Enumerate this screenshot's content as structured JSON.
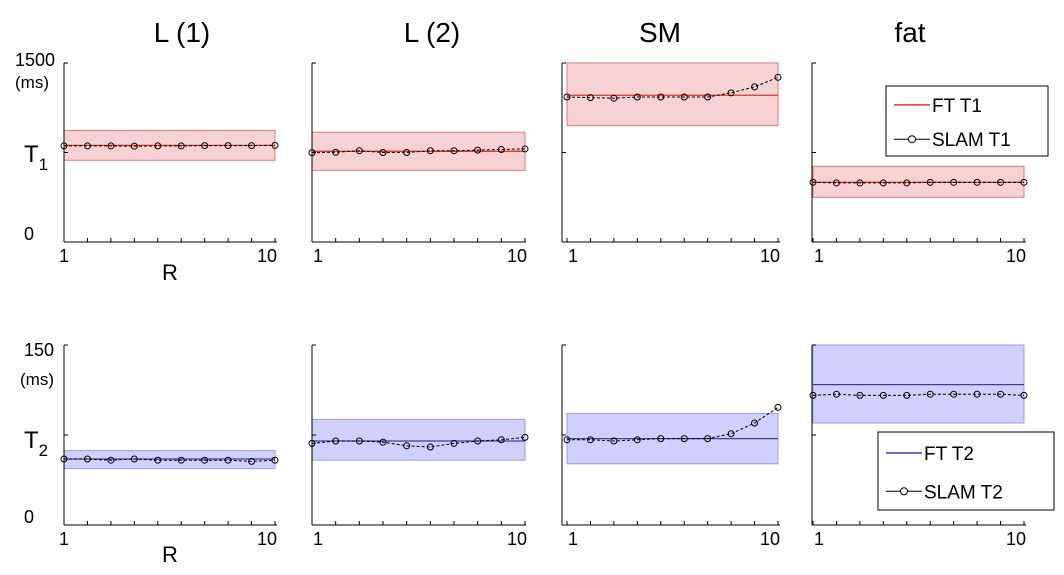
{
  "columns": [
    "L (1)",
    "L (2)",
    "SM",
    "fat"
  ],
  "rows": [
    {
      "ylabel": "T",
      "ylabel_sub": "1",
      "ymax_label": "1500",
      "ymin_label": "0",
      "unit": "(ms)"
    },
    {
      "ylabel": "T",
      "ylabel_sub": "2",
      "ymax_label": "150",
      "ymin_label": "0",
      "unit": "(ms)"
    }
  ],
  "xlabel": "R",
  "xtick_labels": [
    "1",
    "10"
  ],
  "colors": {
    "t1_line": "#d93a2b",
    "t1_band": "#f7d2d2",
    "t1_band_edge": "#e07a78",
    "t2_line": "#4a3aa8",
    "t2_band": "#cfd0fb",
    "t2_band_edge": "#9a9cf0",
    "slam": "#000000"
  },
  "legends": [
    {
      "row": 0,
      "col": 3,
      "ft": "FT T1",
      "slam": "SLAM T1"
    },
    {
      "row": 1,
      "col": 3,
      "ft": "FT T2",
      "slam": "SLAM T2"
    }
  ],
  "chart_data": [
    {
      "type": "line",
      "row": 0,
      "col": 0,
      "title": "L (1)",
      "x": [
        1,
        2,
        3,
        4,
        5,
        6,
        7,
        8,
        9,
        10
      ],
      "xlim": [
        1,
        10
      ],
      "ylim": [
        0,
        1500
      ],
      "series": [
        {
          "name": "FT T1",
          "values": [
            810,
            810,
            810,
            810,
            810,
            810,
            810,
            810,
            810,
            810
          ],
          "band": [
            685,
            935
          ]
        },
        {
          "name": "SLAM T1",
          "values": [
            805,
            805,
            805,
            803,
            805,
            805,
            808,
            808,
            808,
            810
          ]
        }
      ]
    },
    {
      "type": "line",
      "row": 0,
      "col": 1,
      "title": "L (2)",
      "x": [
        1,
        2,
        3,
        4,
        5,
        6,
        7,
        8,
        9,
        10
      ],
      "xlim": [
        1,
        10
      ],
      "ylim": [
        0,
        1500
      ],
      "series": [
        {
          "name": "FT T1",
          "values": [
            760,
            760,
            760,
            760,
            760,
            760,
            760,
            760,
            760,
            760
          ],
          "band": [
            600,
            920
          ]
        },
        {
          "name": "SLAM T1",
          "values": [
            748,
            752,
            765,
            750,
            750,
            765,
            765,
            770,
            775,
            780
          ]
        }
      ]
    },
    {
      "type": "line",
      "row": 0,
      "col": 2,
      "title": "SM",
      "x": [
        1,
        2,
        3,
        4,
        5,
        6,
        7,
        8,
        9,
        10
      ],
      "xlim": [
        1,
        10
      ],
      "ylim": [
        0,
        1500
      ],
      "series": [
        {
          "name": "FT T1",
          "values": [
            1230,
            1230,
            1230,
            1230,
            1230,
            1230,
            1230,
            1230,
            1230,
            1230
          ],
          "band": [
            975,
            1500
          ]
        },
        {
          "name": "SLAM T1",
          "values": [
            1215,
            1210,
            1205,
            1215,
            1215,
            1215,
            1215,
            1250,
            1300,
            1380
          ]
        }
      ]
    },
    {
      "type": "line",
      "row": 0,
      "col": 3,
      "title": "fat",
      "x": [
        1,
        2,
        3,
        4,
        5,
        6,
        7,
        8,
        9,
        10
      ],
      "xlim": [
        1,
        10
      ],
      "ylim": [
        0,
        1500
      ],
      "series": [
        {
          "name": "FT T1",
          "values": [
            500,
            500,
            500,
            500,
            500,
            500,
            500,
            500,
            500,
            500
          ],
          "band": [
            375,
            635
          ]
        },
        {
          "name": "SLAM T1",
          "values": [
            500,
            495,
            495,
            495,
            495,
            500,
            500,
            500,
            500,
            500
          ]
        }
      ]
    },
    {
      "type": "line",
      "row": 1,
      "col": 0,
      "x": [
        1,
        2,
        3,
        4,
        5,
        6,
        7,
        8,
        9,
        10
      ],
      "xlim": [
        1,
        10
      ],
      "ylim": [
        0,
        150
      ],
      "series": [
        {
          "name": "FT T2",
          "values": [
            55,
            55,
            55,
            55,
            55,
            55,
            55,
            55,
            55,
            55
          ],
          "band": [
            47,
            62
          ]
        },
        {
          "name": "SLAM T2",
          "values": [
            55,
            55,
            54,
            55,
            54,
            54,
            54,
            54,
            53,
            54
          ]
        }
      ]
    },
    {
      "type": "line",
      "row": 1,
      "col": 1,
      "x": [
        1,
        2,
        3,
        4,
        5,
        6,
        7,
        8,
        9,
        10
      ],
      "xlim": [
        1,
        10
      ],
      "ylim": [
        0,
        150
      ],
      "series": [
        {
          "name": "FT T2",
          "values": [
            70,
            70,
            70,
            70,
            70,
            70,
            70,
            70,
            70,
            70
          ],
          "band": [
            54,
            88
          ]
        },
        {
          "name": "SLAM T2",
          "values": [
            68,
            70,
            70,
            69,
            66,
            65,
            68,
            70,
            71,
            73
          ]
        }
      ]
    },
    {
      "type": "line",
      "row": 1,
      "col": 2,
      "x": [
        1,
        2,
        3,
        4,
        5,
        6,
        7,
        8,
        9,
        10
      ],
      "xlim": [
        1,
        10
      ],
      "ylim": [
        0,
        150
      ],
      "series": [
        {
          "name": "FT T2",
          "values": [
            72,
            72,
            72,
            72,
            72,
            72,
            72,
            72,
            72,
            72
          ],
          "band": [
            51,
            93
          ]
        },
        {
          "name": "SLAM T2",
          "values": [
            71,
            71,
            70,
            71,
            72,
            72,
            72,
            76,
            85,
            98
          ]
        }
      ]
    },
    {
      "type": "line",
      "row": 1,
      "col": 3,
      "x": [
        1,
        2,
        3,
        4,
        5,
        6,
        7,
        8,
        9,
        10
      ],
      "xlim": [
        1,
        10
      ],
      "ylim": [
        0,
        150
      ],
      "series": [
        {
          "name": "FT T2",
          "values": [
            117,
            117,
            117,
            117,
            117,
            117,
            117,
            117,
            117,
            117
          ],
          "band": [
            85,
            150
          ]
        },
        {
          "name": "SLAM T2",
          "values": [
            108,
            109,
            108,
            108,
            108,
            109,
            109,
            109,
            109,
            108
          ]
        }
      ]
    }
  ]
}
